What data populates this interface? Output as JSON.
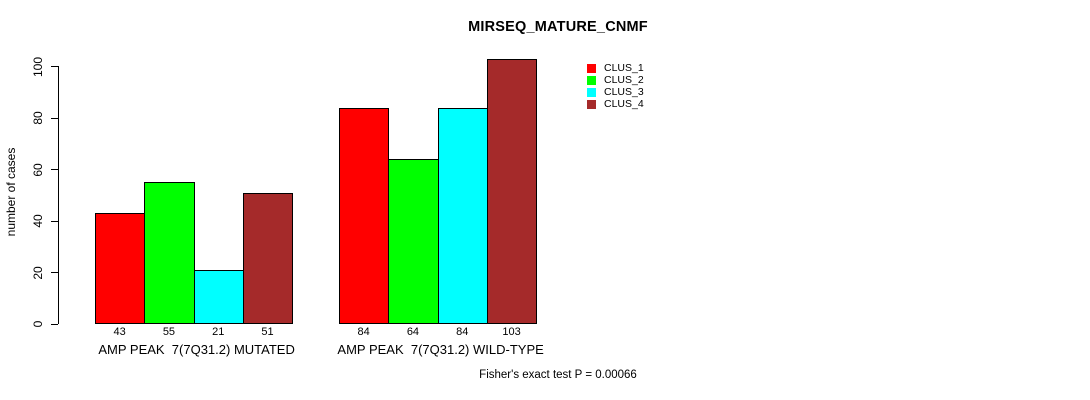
{
  "title": "MIRSEQ_MATURE_CNMF",
  "footnote": "Fisher's exact test P = 0.00066",
  "colors": {
    "background": "#FFFFFF",
    "axis": "#000000",
    "text": "#000000",
    "clus_1": "#FF0000",
    "clus_2": "#00FF00",
    "clus_3": "#00FFFF",
    "clus_4": "#A52A2A"
  },
  "chart_data": {
    "type": "bar",
    "title": "MIRSEQ_MATURE_CNMF",
    "categories": [
      "AMP PEAK  7(7Q31.2) MUTATED",
      "AMP PEAK  7(7Q31.2) WILD-TYPE"
    ],
    "series": [
      {
        "name": "CLUS_1",
        "color": "#FF0000",
        "values": [
          43,
          84
        ]
      },
      {
        "name": "CLUS_2",
        "color": "#00FF00",
        "values": [
          55,
          64
        ]
      },
      {
        "name": "CLUS_3",
        "color": "#00FFFF",
        "values": [
          21,
          84
        ]
      },
      {
        "name": "CLUS_4",
        "color": "#A52A2A",
        "values": [
          51,
          103
        ]
      }
    ],
    "xlabel": "",
    "ylabel": "number of cases",
    "ylim": [
      0,
      103
    ],
    "yticks": [
      0,
      20,
      40,
      60,
      80,
      100
    ],
    "grid": false,
    "legend_position": "upper-right",
    "show_bar_value_labels": true,
    "annotation": "Fisher's exact test P = 0.00066"
  }
}
